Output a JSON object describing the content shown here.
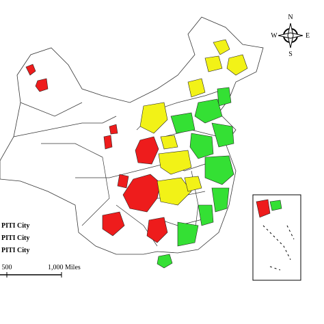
{
  "compass": {
    "n": "N",
    "w": "W",
    "e": "E",
    "s": "S"
  },
  "legend": {
    "items": [
      "PITI City",
      "PITI City",
      "PITI City"
    ]
  },
  "scale": {
    "labels": [
      "500",
      "1,000 Miles"
    ]
  }
}
